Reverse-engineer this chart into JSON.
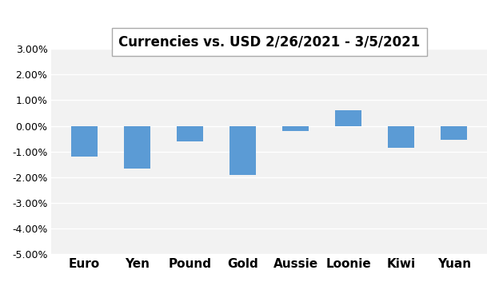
{
  "title": "Currencies vs. USD 2/26/2021 - 3/5/2021",
  "categories": [
    "Euro",
    "Yen",
    "Pound",
    "Gold",
    "Aussie",
    "Loonie",
    "Kiwi",
    "Yuan"
  ],
  "values": [
    -0.012,
    -0.0165,
    -0.006,
    -0.019,
    -0.002,
    0.006,
    -0.0085,
    -0.0055
  ],
  "bar_color": "#5B9BD5",
  "ylim": [
    -0.05,
    0.03
  ],
  "yticks": [
    -0.05,
    -0.04,
    -0.03,
    -0.02,
    -0.01,
    0.0,
    0.01,
    0.02,
    0.03
  ],
  "background_color": "#FFFFFF",
  "plot_bg_color": "#F2F2F2",
  "grid_color": "#FFFFFF",
  "title_fontsize": 12,
  "xlabel_fontsize": 11,
  "ylabel_fontsize": 9
}
